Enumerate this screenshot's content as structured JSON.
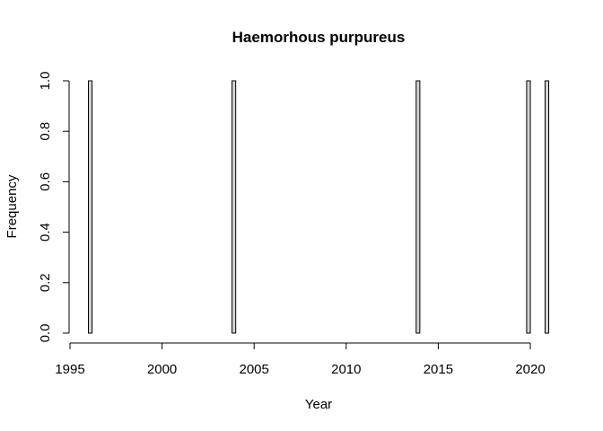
{
  "chart_data": {
    "type": "bar",
    "title": "Haemorhous purpureus",
    "xlabel": "Year",
    "ylabel": "Frequency",
    "xlim": [
      1995,
      2021
    ],
    "ylim": [
      0,
      1
    ],
    "x_ticks": [
      "1995",
      "2000",
      "2005",
      "2010",
      "2015",
      "2020"
    ],
    "y_ticks": [
      "0.0",
      "0.2",
      "0.4",
      "0.6",
      "0.8",
      "1.0"
    ],
    "bin_width": 0.2,
    "bin_start": 1996.0,
    "bin_end": 2021.0,
    "bars": [
      {
        "x": 1996.0,
        "value": 1
      },
      {
        "x": 2003.8,
        "value": 1
      },
      {
        "x": 2013.8,
        "value": 1
      },
      {
        "x": 2019.8,
        "value": 1
      },
      {
        "x": 2020.8,
        "value": 1
      }
    ]
  }
}
